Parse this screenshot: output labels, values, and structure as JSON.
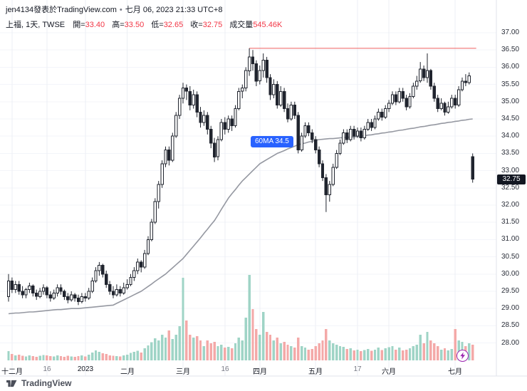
{
  "header": {
    "byline": "jen4134發表於TradingView.com",
    "sep": "•",
    "datetime": "七月 06, 2023 21:33 UTC+8",
    "symbol": "上福, 1天, TWSE",
    "ohlc": [
      {
        "label": "開=",
        "value": "33.40"
      },
      {
        "label": "高=",
        "value": "33.50"
      },
      {
        "label": "低=",
        "value": "32.65"
      },
      {
        "label": "收=",
        "value": "32.75"
      },
      {
        "label": "成交量",
        "value": "545.46K"
      }
    ]
  },
  "footer": {
    "logo_text": "TradingView"
  },
  "ma_label": {
    "text": "60MA 34.5"
  },
  "price_axis": {
    "labels": [
      "37.00",
      "36.50",
      "36.00",
      "35.50",
      "35.00",
      "34.50",
      "34.00",
      "33.50",
      "33.00",
      "32.50",
      "32.00",
      "31.50",
      "31.00",
      "30.50",
      "30.00",
      "29.50",
      "29.00",
      "28.50",
      "28.00"
    ],
    "last_price": "32.75"
  },
  "time_axis": {
    "ticks": [
      {
        "label": "十二月",
        "i": 1
      },
      {
        "label": "16",
        "i": 11,
        "minor": true
      },
      {
        "label": "2023",
        "i": 22
      },
      {
        "label": "二月",
        "i": 34
      },
      {
        "label": "三月",
        "i": 50
      },
      {
        "label": "16",
        "i": 62,
        "minor": true
      },
      {
        "label": "四月",
        "i": 72
      },
      {
        "label": "五月",
        "i": 88
      },
      {
        "label": "17",
        "i": 100,
        "minor": true
      },
      {
        "label": "六月",
        "i": 109
      },
      {
        "label": "七月",
        "i": 128
      }
    ]
  },
  "chart_data": {
    "type": "candlestick",
    "title": "上福 1天 TWSE",
    "interval": "1天",
    "ylim": [
      27.75,
      37.1
    ],
    "price_step": 0.5,
    "volume_unit": "K",
    "hline": {
      "price": 36.55,
      "from_index": 69
    },
    "ma60_current": 34.5,
    "colors": {
      "up_body": "#ffffff",
      "down_body": "#20242e",
      "outline": "#20242e",
      "vol_up": "#9fd4c6",
      "vol_down": "#f4a9a8",
      "ma": "#9598a1",
      "hline": "#f28080",
      "accent_blue": "#2962ff",
      "value_red": "#f23645"
    },
    "candles": [
      [
        29.35,
        30.0,
        29.2,
        29.8,
        320
      ],
      [
        29.8,
        29.9,
        29.45,
        29.55,
        220
      ],
      [
        29.55,
        29.8,
        29.45,
        29.7,
        180
      ],
      [
        29.7,
        29.8,
        29.4,
        29.5,
        200
      ],
      [
        29.5,
        29.65,
        29.3,
        29.4,
        160
      ],
      [
        29.4,
        29.6,
        29.3,
        29.55,
        140
      ],
      [
        29.55,
        29.75,
        29.45,
        29.65,
        170
      ],
      [
        29.65,
        29.7,
        29.35,
        29.45,
        150
      ],
      [
        29.45,
        29.55,
        29.25,
        29.35,
        130
      ],
      [
        29.35,
        29.6,
        29.3,
        29.5,
        160
      ],
      [
        29.5,
        29.7,
        29.4,
        29.6,
        190
      ],
      [
        29.6,
        29.65,
        29.3,
        29.4,
        170
      ],
      [
        29.4,
        29.5,
        29.2,
        29.3,
        150
      ],
      [
        29.3,
        29.55,
        29.25,
        29.45,
        140
      ],
      [
        29.45,
        29.7,
        29.35,
        29.6,
        180
      ],
      [
        29.6,
        29.7,
        29.4,
        29.5,
        150
      ],
      [
        29.5,
        29.55,
        29.25,
        29.35,
        130
      ],
      [
        29.35,
        29.45,
        29.15,
        29.25,
        160
      ],
      [
        29.25,
        29.5,
        29.2,
        29.4,
        140
      ],
      [
        29.4,
        29.45,
        29.2,
        29.3,
        120
      ],
      [
        29.3,
        29.4,
        29.1,
        29.2,
        150
      ],
      [
        29.2,
        29.45,
        29.15,
        29.35,
        170
      ],
      [
        29.35,
        29.45,
        29.2,
        29.3,
        140
      ],
      [
        29.3,
        29.6,
        29.25,
        29.5,
        200
      ],
      [
        29.5,
        29.9,
        29.45,
        29.8,
        280
      ],
      [
        29.8,
        30.2,
        29.75,
        30.1,
        350
      ],
      [
        30.1,
        30.35,
        29.95,
        30.25,
        300
      ],
      [
        30.25,
        30.3,
        29.9,
        30.0,
        250
      ],
      [
        30.0,
        30.1,
        29.6,
        29.7,
        220
      ],
      [
        29.7,
        29.8,
        29.4,
        29.5,
        180
      ],
      [
        29.5,
        29.65,
        29.3,
        29.4,
        160
      ],
      [
        29.4,
        29.7,
        29.35,
        29.55,
        150
      ],
      [
        29.55,
        29.65,
        29.35,
        29.45,
        140
      ],
      [
        29.45,
        29.75,
        29.4,
        29.6,
        180
      ],
      [
        29.6,
        29.85,
        29.55,
        29.7,
        200
      ],
      [
        29.7,
        30.0,
        29.65,
        29.9,
        260
      ],
      [
        29.9,
        30.2,
        29.8,
        30.1,
        300
      ],
      [
        30.1,
        30.45,
        30.0,
        30.35,
        340
      ],
      [
        30.35,
        30.4,
        30.05,
        30.2,
        280
      ],
      [
        30.2,
        30.7,
        30.15,
        30.6,
        420
      ],
      [
        30.6,
        31.1,
        30.55,
        31.0,
        520
      ],
      [
        31.0,
        31.6,
        30.95,
        31.5,
        640
      ],
      [
        31.5,
        32.2,
        31.45,
        32.1,
        780
      ],
      [
        32.1,
        32.7,
        31.9,
        32.6,
        700
      ],
      [
        32.6,
        33.3,
        32.5,
        33.2,
        900
      ],
      [
        33.2,
        33.7,
        33.1,
        33.6,
        800
      ],
      [
        33.6,
        33.7,
        33.15,
        33.3,
        1050
      ],
      [
        33.3,
        34.1,
        33.25,
        34.0,
        750
      ],
      [
        34.0,
        34.7,
        33.95,
        34.6,
        900
      ],
      [
        34.6,
        35.2,
        34.5,
        35.1,
        1200
      ],
      [
        35.1,
        35.55,
        34.95,
        35.4,
        2900
      ],
      [
        35.4,
        35.5,
        35.05,
        35.3,
        1400
      ],
      [
        35.3,
        35.45,
        34.75,
        34.9,
        900
      ],
      [
        34.9,
        35.35,
        34.8,
        35.2,
        800
      ],
      [
        35.2,
        35.3,
        34.55,
        34.7,
        850
      ],
      [
        34.7,
        34.85,
        34.25,
        34.4,
        700
      ],
      [
        34.4,
        34.75,
        34.3,
        34.6,
        500
      ],
      [
        34.6,
        34.7,
        34.05,
        34.2,
        700
      ],
      [
        34.2,
        34.3,
        33.65,
        33.8,
        600
      ],
      [
        33.8,
        33.95,
        33.25,
        33.4,
        650
      ],
      [
        33.4,
        34.0,
        33.3,
        33.9,
        500
      ],
      [
        33.9,
        34.5,
        33.85,
        34.4,
        550
      ],
      [
        34.4,
        34.55,
        34.05,
        34.2,
        450
      ],
      [
        34.2,
        34.6,
        34.1,
        34.5,
        480
      ],
      [
        34.5,
        34.6,
        34.15,
        34.3,
        420
      ],
      [
        34.3,
        34.9,
        34.25,
        34.8,
        600
      ],
      [
        34.8,
        35.4,
        34.75,
        35.3,
        800
      ],
      [
        35.3,
        35.5,
        35.1,
        35.4,
        700
      ],
      [
        35.4,
        36.0,
        35.3,
        35.9,
        1500
      ],
      [
        35.9,
        36.55,
        35.75,
        36.3,
        3000
      ],
      [
        36.3,
        36.5,
        35.9,
        36.1,
        1800
      ],
      [
        36.1,
        36.2,
        35.45,
        35.6,
        1100
      ],
      [
        35.6,
        36.05,
        35.5,
        35.9,
        900
      ],
      [
        35.9,
        36.4,
        35.7,
        36.2,
        1700
      ],
      [
        36.2,
        36.3,
        35.55,
        35.7,
        1000
      ],
      [
        35.7,
        35.8,
        35.05,
        35.2,
        900
      ],
      [
        35.2,
        35.65,
        35.1,
        35.5,
        700
      ],
      [
        35.5,
        35.6,
        34.8,
        34.9,
        800
      ],
      [
        34.9,
        35.45,
        34.85,
        35.3,
        600
      ],
      [
        35.3,
        35.4,
        34.7,
        34.8,
        650
      ],
      [
        34.8,
        34.95,
        34.4,
        34.5,
        550
      ],
      [
        34.5,
        35.0,
        34.45,
        34.9,
        500
      ],
      [
        34.9,
        35.0,
        34.5,
        34.6,
        450
      ],
      [
        34.6,
        34.7,
        33.5,
        33.6,
        800
      ],
      [
        33.6,
        34.1,
        33.55,
        34.0,
        500
      ],
      [
        34.0,
        34.4,
        33.95,
        34.3,
        450
      ],
      [
        34.3,
        34.4,
        34.0,
        34.1,
        380
      ],
      [
        34.1,
        34.2,
        33.8,
        33.9,
        400
      ],
      [
        33.9,
        34.0,
        33.5,
        33.6,
        500
      ],
      [
        33.6,
        33.7,
        33.1,
        33.2,
        600
      ],
      [
        33.2,
        33.3,
        32.7,
        32.8,
        700
      ],
      [
        32.8,
        32.9,
        31.8,
        32.3,
        1100
      ],
      [
        32.3,
        32.7,
        32.1,
        32.6,
        700
      ],
      [
        32.6,
        33.2,
        32.55,
        33.1,
        600
      ],
      [
        33.1,
        33.6,
        33.05,
        33.5,
        550
      ],
      [
        33.5,
        33.9,
        33.45,
        33.8,
        500
      ],
      [
        33.8,
        34.2,
        33.75,
        34.1,
        480
      ],
      [
        34.1,
        34.2,
        33.8,
        33.9,
        400
      ],
      [
        33.9,
        34.3,
        33.85,
        34.2,
        420
      ],
      [
        34.2,
        34.3,
        33.9,
        34.0,
        350
      ],
      [
        34.0,
        34.25,
        33.95,
        34.15,
        380
      ],
      [
        34.15,
        34.25,
        33.85,
        33.95,
        320
      ],
      [
        33.95,
        34.3,
        33.9,
        34.2,
        360
      ],
      [
        34.2,
        34.5,
        34.15,
        34.4,
        400
      ],
      [
        34.4,
        34.5,
        34.15,
        34.25,
        340
      ],
      [
        34.25,
        34.6,
        34.2,
        34.5,
        380
      ],
      [
        34.5,
        34.8,
        34.45,
        34.7,
        450
      ],
      [
        34.7,
        34.8,
        34.45,
        34.55,
        360
      ],
      [
        34.55,
        34.9,
        34.5,
        34.8,
        420
      ],
      [
        34.8,
        35.05,
        34.7,
        34.95,
        460
      ],
      [
        34.95,
        35.3,
        34.9,
        35.2,
        500
      ],
      [
        35.2,
        35.3,
        34.9,
        35.0,
        380
      ],
      [
        35.0,
        35.4,
        34.95,
        35.3,
        450
      ],
      [
        35.3,
        35.4,
        35.0,
        35.1,
        350
      ],
      [
        35.1,
        35.2,
        34.75,
        34.85,
        380
      ],
      [
        34.85,
        35.25,
        34.8,
        35.15,
        420
      ],
      [
        35.15,
        35.55,
        35.1,
        35.45,
        500
      ],
      [
        35.45,
        35.75,
        35.35,
        35.6,
        550
      ],
      [
        35.6,
        36.15,
        35.55,
        35.95,
        900
      ],
      [
        35.95,
        36.05,
        35.6,
        35.7,
        600
      ],
      [
        35.7,
        36.4,
        35.55,
        35.9,
        1000
      ],
      [
        35.9,
        35.95,
        35.35,
        35.45,
        700
      ],
      [
        35.45,
        35.55,
        35.0,
        35.1,
        600
      ],
      [
        35.1,
        35.2,
        34.7,
        34.8,
        500
      ],
      [
        34.8,
        35.1,
        34.75,
        34.95,
        380
      ],
      [
        34.95,
        35.0,
        34.6,
        34.7,
        420
      ],
      [
        34.7,
        35.0,
        34.65,
        34.85,
        350
      ],
      [
        34.85,
        35.2,
        34.8,
        35.1,
        400
      ],
      [
        35.1,
        35.2,
        34.8,
        34.9,
        1100
      ],
      [
        34.9,
        35.45,
        34.85,
        35.35,
        700
      ],
      [
        35.35,
        35.7,
        35.3,
        35.6,
        650
      ],
      [
        35.6,
        35.8,
        35.45,
        35.55,
        500
      ],
      [
        35.55,
        35.85,
        35.5,
        35.75,
        600
      ],
      [
        33.4,
        33.5,
        32.65,
        32.75,
        545
      ]
    ],
    "ma60": [
      28.85,
      28.86,
      28.87,
      28.87,
      28.88,
      28.89,
      28.9,
      28.9,
      28.91,
      28.92,
      28.93,
      28.94,
      28.95,
      28.96,
      28.97,
      28.97,
      28.98,
      28.99,
      29.0,
      29.0,
      29.0,
      29.01,
      29.02,
      29.03,
      29.04,
      29.05,
      29.06,
      29.07,
      29.08,
      29.09,
      29.1,
      29.15,
      29.2,
      29.25,
      29.3,
      29.35,
      29.4,
      29.45,
      29.5,
      29.57,
      29.64,
      29.71,
      29.79,
      29.86,
      29.93,
      30.0,
      30.09,
      30.18,
      30.27,
      30.36,
      30.45,
      30.57,
      30.69,
      30.81,
      30.93,
      31.05,
      31.18,
      31.3,
      31.43,
      31.55,
      31.71,
      31.88,
      32.04,
      32.2,
      32.33,
      32.45,
      32.58,
      32.7,
      32.8,
      32.9,
      33.0,
      33.1,
      33.2,
      33.26,
      33.32,
      33.38,
      33.44,
      33.5,
      33.54,
      33.58,
      33.63,
      33.67,
      33.71,
      33.75,
      33.78,
      33.8,
      33.83,
      33.85,
      33.88,
      33.9,
      33.91,
      33.92,
      33.93,
      33.93,
      33.94,
      33.95,
      33.96,
      33.97,
      33.97,
      33.98,
      33.99,
      34.0,
      34.01,
      34.03,
      34.04,
      34.06,
      34.07,
      34.09,
      34.1,
      34.12,
      34.13,
      34.15,
      34.17,
      34.18,
      34.2,
      34.22,
      34.23,
      34.25,
      34.27,
      34.28,
      34.3,
      34.32,
      34.33,
      34.35,
      34.37,
      34.38,
      34.4,
      34.41,
      34.43,
      34.44,
      34.46,
      34.47,
      34.49,
      34.5
    ]
  }
}
